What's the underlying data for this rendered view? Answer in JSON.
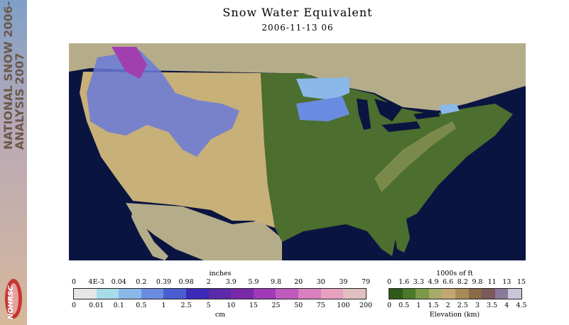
{
  "banner": {
    "line1": "NATIONAL SNOW 2006-",
    "line2": "ANALYSIS 2007",
    "logo_text": "NOHRSC"
  },
  "title": "Snow Water Equivalent",
  "subtitle": "2006-11-13 06",
  "swe_legend": {
    "top_label": "inches",
    "bottom_label": "cm",
    "inch_ticks": [
      "0",
      "4E-3",
      "0.04",
      "0.2",
      "0.39",
      "0.98",
      "2",
      "3.9",
      "5.9",
      "9.8",
      "20",
      "30",
      "39",
      "79"
    ],
    "cm_ticks": [
      "0",
      "0.01",
      "0.1",
      "0.5",
      "1",
      "2.5",
      "5",
      "10",
      "15",
      "25",
      "50",
      "75",
      "100",
      "200"
    ],
    "colors": [
      "#e6e6e6",
      "#a8dce8",
      "#8ab8e8",
      "#6a8ce0",
      "#4a5ed0",
      "#3c2ab8",
      "#5a2aaa",
      "#7a2aa8",
      "#a03ab8",
      "#c05abe",
      "#d880c0",
      "#e8a0c0",
      "#e0c0c0"
    ]
  },
  "elev_legend": {
    "top_label": "1000s of ft",
    "bottom_label": "Elevation (km)",
    "ft_ticks": [
      "0",
      "1.6",
      "3.3",
      "4.9",
      "6.6",
      "8.2",
      "9.8",
      "11",
      "13",
      "15"
    ],
    "km_ticks": [
      "0",
      "0.5",
      "1",
      "1.5",
      "2",
      "2.5",
      "3",
      "3.5",
      "4",
      "4.5"
    ],
    "colors": [
      "#2e5a1a",
      "#4a7a2a",
      "#7a9a4a",
      "#a8aa6a",
      "#c2a870",
      "#a88a58",
      "#8a6a48",
      "#7a5a5a",
      "#8a7a9a",
      "#c8c8d8"
    ]
  }
}
